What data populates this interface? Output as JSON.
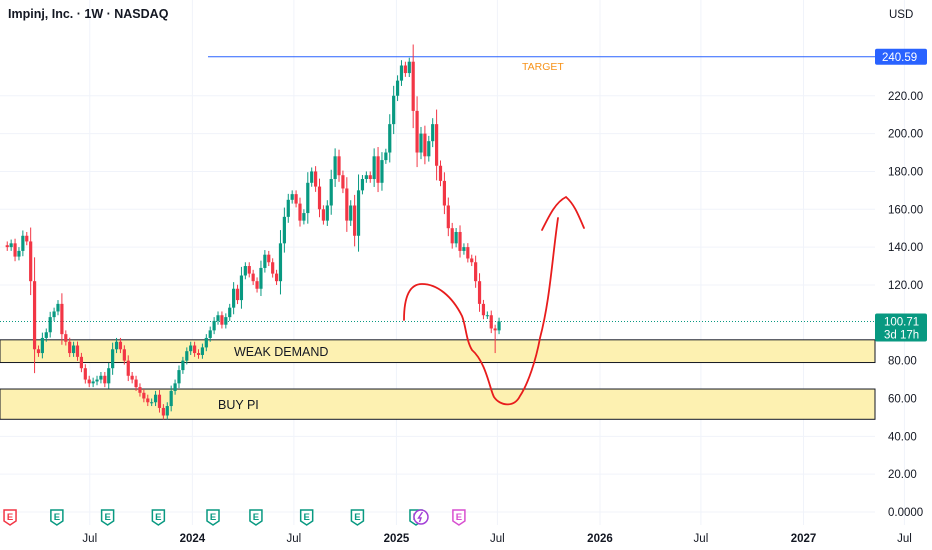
{
  "header": {
    "title": "Impinj, Inc. · 1W · NASDAQ",
    "currency": "USD"
  },
  "price_axis": {
    "ticks": [
      {
        "value": 220,
        "label": "220.00"
      },
      {
        "value": 200,
        "label": "200.00"
      },
      {
        "value": 180,
        "label": "180.00"
      },
      {
        "value": 160,
        "label": "160.00"
      },
      {
        "value": 140,
        "label": "140.00"
      },
      {
        "value": 120,
        "label": "120.00"
      },
      {
        "value": 80,
        "label": "80.00"
      },
      {
        "value": 60,
        "label": "60.00"
      },
      {
        "value": 40,
        "label": "40.00"
      },
      {
        "value": 20,
        "label": "20.00"
      },
      {
        "value": 0,
        "label": "0.0000"
      }
    ]
  },
  "time_axis": {
    "ticks": [
      {
        "date": "2023-07-01",
        "label": "Jul",
        "bold": false
      },
      {
        "date": "2024-01-01",
        "label": "2024",
        "bold": true
      },
      {
        "date": "2024-07-01",
        "label": "Jul",
        "bold": false
      },
      {
        "date": "2025-01-01",
        "label": "2025",
        "bold": true
      },
      {
        "date": "2025-07-01",
        "label": "Jul",
        "bold": false
      },
      {
        "date": "2026-01-01",
        "label": "2026",
        "bold": true
      },
      {
        "date": "2026-07-01",
        "label": "Jul",
        "bold": false
      },
      {
        "date": "2027-01-01",
        "label": "2027",
        "bold": true
      },
      {
        "date": "2027-07-01",
        "label": "Jul",
        "bold": false
      }
    ]
  },
  "annotations": {
    "target": {
      "label": "TARGET",
      "price": 240.59,
      "price_label": "240.59"
    },
    "last_price": {
      "price": 100.71,
      "price_label": "100.71",
      "countdown": "3d 17h"
    },
    "zones": [
      {
        "label": "WEAK DEMAND",
        "top": 91,
        "bottom": 79
      },
      {
        "label": "BUY PI",
        "top": 65,
        "bottom": 49
      }
    ],
    "events": [
      {
        "date": "2023-02-08",
        "type": "E",
        "color": "#f23645"
      },
      {
        "date": "2023-05-03",
        "type": "E",
        "color": "#089981"
      },
      {
        "date": "2023-08-02",
        "type": "E",
        "color": "#089981"
      },
      {
        "date": "2023-11-01",
        "type": "E",
        "color": "#089981"
      },
      {
        "date": "2024-02-07",
        "type": "E",
        "color": "#089981"
      },
      {
        "date": "2024-04-24",
        "type": "E",
        "color": "#089981"
      },
      {
        "date": "2024-07-24",
        "type": "E",
        "color": "#089981"
      },
      {
        "date": "2024-10-23",
        "type": "E",
        "color": "#089981"
      },
      {
        "date": "2025-02-05",
        "type": "E",
        "color": "#089981"
      },
      {
        "date": "2025-02-14",
        "type": "split",
        "color": "#a23fd6"
      },
      {
        "date": "2025-04-23",
        "type": "E",
        "color": "#d84fd0"
      }
    ],
    "projection_color": "#e81c1c"
  },
  "colors": {
    "up": "#089981",
    "down": "#f23645",
    "target_line": "#2962ff",
    "zone_fill": "#fdf1b1",
    "grid": "#f0f3fa"
  },
  "chart_data": {
    "type": "candlestick",
    "title": "Impinj, Inc. · 1W · NASDAQ",
    "interval": "1W",
    "currency": "USD",
    "ylim": [
      -8,
      254
    ],
    "xlim": [
      "2023-01-21",
      "2027-09-01"
    ],
    "grid": true,
    "candle_start_date": "2023-01-27",
    "candle_step_days": 7,
    "closes": [
      141,
      140,
      142,
      135,
      138,
      146,
      143,
      122,
      86,
      84,
      92,
      95,
      103,
      106,
      110,
      94,
      90,
      84,
      88,
      82,
      76,
      70,
      68,
      69,
      70,
      72,
      68,
      76,
      86,
      90,
      86,
      80,
      72,
      70,
      66,
      63,
      60,
      58,
      58,
      62,
      55,
      51,
      56,
      64,
      68,
      75,
      80,
      85,
      88,
      84,
      83,
      87,
      92,
      96,
      101,
      104,
      99,
      103,
      108,
      118,
      112,
      125,
      130,
      126,
      122,
      118,
      129,
      136,
      132,
      126,
      122,
      142,
      156,
      165,
      168,
      163,
      154,
      158,
      174,
      180,
      172,
      160,
      154,
      162,
      176,
      188,
      178,
      171,
      154,
      162,
      146,
      170,
      176,
      178,
      176,
      188,
      174,
      186,
      190,
      205,
      220,
      228,
      236,
      232,
      238,
      212,
      190,
      200,
      188,
      196,
      205,
      183,
      175,
      162,
      150,
      142,
      148,
      138,
      140,
      134,
      132,
      122,
      110,
      104,
      104,
      97,
      96,
      100.71
    ],
    "lows": [
      null,
      null,
      null,
      null,
      null,
      null,
      null,
      null,
      null,
      null,
      null,
      null,
      null,
      null,
      null,
      null,
      null,
      null,
      null,
      null,
      null,
      null,
      null,
      null,
      null,
      null,
      null,
      null,
      null,
      null,
      null,
      null,
      null,
      null,
      null,
      null,
      null,
      null,
      null,
      null,
      null,
      null,
      null,
      null,
      null,
      null,
      null,
      null,
      null,
      null,
      null,
      null,
      null,
      null,
      null,
      null,
      null,
      null,
      null,
      null,
      null,
      null,
      null,
      null,
      null,
      null,
      null,
      null,
      null,
      null,
      null,
      null,
      null,
      null,
      null,
      null,
      null,
      null,
      null,
      null,
      null,
      null,
      null,
      null,
      null,
      null,
      null,
      null,
      null,
      null,
      null,
      null,
      null,
      null,
      null,
      null,
      null,
      null,
      null,
      null,
      null,
      null,
      null,
      null,
      null,
      null,
      null,
      null,
      null,
      null,
      null,
      null,
      null,
      null,
      null,
      null,
      null,
      null,
      null,
      null,
      null,
      null,
      null,
      null,
      null,
      null,
      84,
      null
    ]
  }
}
